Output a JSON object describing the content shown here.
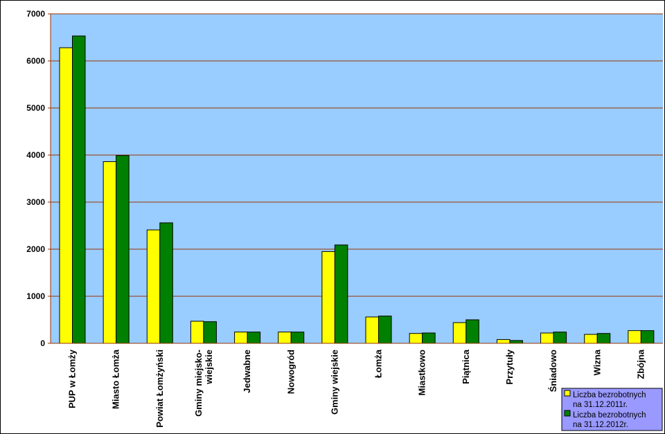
{
  "chart_data": {
    "type": "bar",
    "categories": [
      "PUP w Łomży",
      "Miasto Łomża",
      "Powiat Łomżyński",
      "Gminy miejsko-\nwiejskie",
      "Jedwabne",
      "Nowogród",
      "Gminy wiejskie",
      "Łomża",
      "Miastkowo",
      "Piątnica",
      "Przytuły",
      "Śniadowo",
      "Wizna",
      "Zbójna"
    ],
    "series": [
      {
        "name": "Liczba bezrobotnych\nna 31.12.2011r.",
        "color": "#ffff00",
        "values": [
          6280,
          3860,
          2410,
          470,
          240,
          240,
          1950,
          560,
          210,
          440,
          80,
          220,
          190,
          270
        ]
      },
      {
        "name": "Liczba bezrobotnych\nna 31.12.2012r.",
        "color": "#008000",
        "values": [
          6530,
          3990,
          2560,
          460,
          240,
          240,
          2090,
          580,
          220,
          500,
          60,
          240,
          210,
          270
        ]
      }
    ],
    "ylim": [
      0,
      7000
    ],
    "yticks": [
      0,
      1000,
      2000,
      3000,
      4000,
      5000,
      6000,
      7000
    ],
    "grid": true,
    "plot_background": "#99ccff",
    "grid_color": "#993300",
    "legend": "bottom-right",
    "legend_background": "#9999ff"
  }
}
